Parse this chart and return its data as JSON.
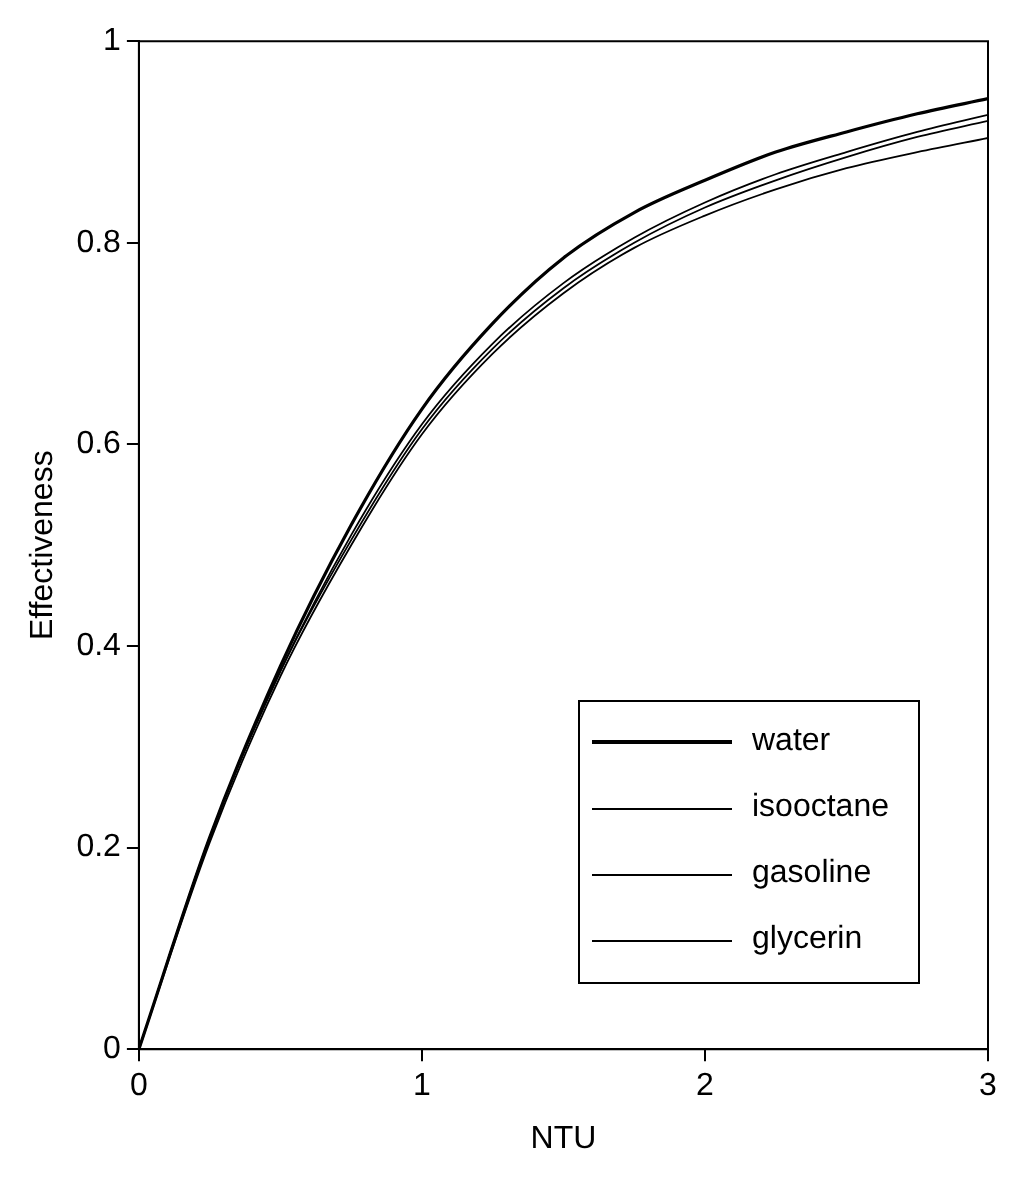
{
  "chart_data": {
    "type": "line",
    "xlabel": "NTU",
    "ylabel": "Effectiveness",
    "x": [
      0,
      0.25,
      0.5,
      0.75,
      1,
      1.25,
      1.5,
      1.75,
      2,
      2.25,
      2.5,
      2.75,
      3
    ],
    "series": [
      {
        "name": "water",
        "color": "#000000",
        "values": [
          0,
          0.21,
          0.38,
          0.52,
          0.635,
          0.72,
          0.785,
          0.83,
          0.862,
          0.89,
          0.91,
          0.928,
          0.943
        ]
      },
      {
        "name": "isooctane",
        "color": "#000000",
        "values": [
          0,
          0.21,
          0.375,
          0.51,
          0.62,
          0.7,
          0.76,
          0.805,
          0.84,
          0.868,
          0.89,
          0.91,
          0.927
        ]
      },
      {
        "name": "gasoline",
        "color": "#000000",
        "values": [
          0,
          0.21,
          0.375,
          0.505,
          0.615,
          0.695,
          0.755,
          0.8,
          0.835,
          0.862,
          0.885,
          0.905,
          0.921
        ]
      },
      {
        "name": "glycerin",
        "color": "#000000",
        "values": [
          0,
          0.205,
          0.37,
          0.5,
          0.61,
          0.69,
          0.75,
          0.795,
          0.827,
          0.853,
          0.874,
          0.89,
          0.904
        ]
      }
    ],
    "xlim": [
      0,
      3
    ],
    "xticks": [
      0,
      1,
      2,
      3
    ],
    "ylim": [
      0,
      1
    ],
    "yticks": [
      0,
      0.2,
      0.4,
      0.6,
      0.8,
      1
    ],
    "grid": false,
    "legend": "bottom right",
    "marker": "none",
    "line_style": "solid"
  }
}
